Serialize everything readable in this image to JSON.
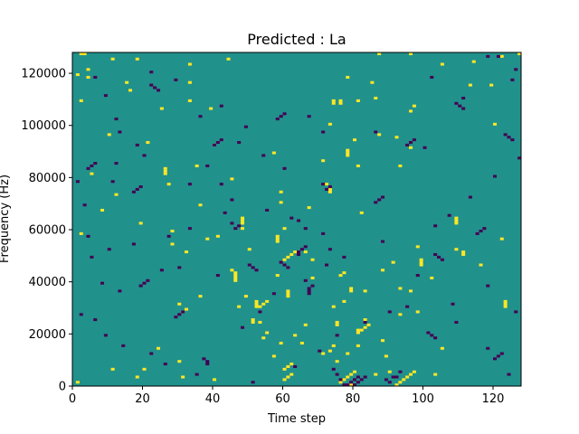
{
  "chart_data": {
    "type": "heatmap",
    "title": "Predicted : La",
    "xlabel": "Time step",
    "ylabel": "Frequency (Hz)",
    "xlim": [
      0,
      128
    ],
    "ylim": [
      0,
      128000
    ],
    "n_cols": 128,
    "n_rows": 128,
    "x_ticks": [
      0,
      20,
      40,
      60,
      80,
      100,
      120
    ],
    "x_tick_labels": [
      "0",
      "20",
      "40",
      "60",
      "80",
      "100",
      "120"
    ],
    "y_ticks": [
      0,
      20000,
      40000,
      60000,
      80000,
      100000,
      120000
    ],
    "y_tick_labels": [
      "0",
      "20000",
      "40000",
      "60000",
      "80000",
      "100000",
      "120000"
    ],
    "colors": {
      "background": "#21918c",
      "high": "#fde725",
      "low": "#440154"
    },
    "value_levels": {
      "background": 0.5,
      "high": 1.0,
      "low": 0.0
    },
    "high_cells": [
      [
        2,
        127
      ],
      [
        3,
        127
      ],
      [
        96,
        127
      ],
      [
        127,
        127
      ],
      [
        122,
        126
      ],
      [
        11,
        125
      ],
      [
        18,
        125
      ],
      [
        44,
        125
      ],
      [
        105,
        123
      ],
      [
        4,
        121
      ],
      [
        1,
        119
      ],
      [
        78,
        118
      ],
      [
        33,
        116
      ],
      [
        113,
        115
      ],
      [
        16,
        113
      ],
      [
        2,
        109
      ],
      [
        33,
        109
      ],
      [
        39,
        106
      ],
      [
        96,
        105
      ],
      [
        10,
        96
      ],
      [
        21,
        93
      ],
      [
        40,
        92
      ],
      [
        57,
        89
      ],
      [
        71,
        86
      ],
      [
        81,
        84
      ],
      [
        93,
        84
      ],
      [
        5,
        81
      ],
      [
        45,
        79
      ],
      [
        27,
        77
      ],
      [
        59,
        74
      ],
      [
        12,
        73
      ],
      [
        59,
        70
      ],
      [
        67,
        68
      ],
      [
        82,
        66
      ],
      [
        19,
        62
      ],
      [
        41,
        57
      ],
      [
        50,
        52
      ],
      [
        68,
        48
      ],
      [
        91,
        47
      ],
      [
        88,
        44
      ],
      [
        68,
        41
      ],
      [
        46,
        40
      ],
      [
        93,
        37
      ],
      [
        83,
        36
      ],
      [
        77,
        32
      ],
      [
        30,
        31
      ],
      [
        47,
        30
      ],
      [
        93,
        27
      ],
      [
        83,
        25
      ],
      [
        66,
        23
      ],
      [
        54,
        18
      ],
      [
        88,
        17
      ],
      [
        59,
        16
      ],
      [
        24,
        14
      ],
      [
        71,
        12
      ],
      [
        78,
        12
      ],
      [
        30,
        9
      ],
      [
        11,
        6
      ],
      [
        86,
        4
      ],
      [
        103,
        4
      ],
      [
        18,
        3
      ],
      [
        40,
        2
      ],
      [
        81,
        15
      ],
      [
        38,
        56
      ],
      [
        25,
        106
      ],
      [
        89,
        11
      ],
      [
        109,
        52
      ],
      [
        102,
        41
      ],
      [
        63,
        19
      ],
      [
        119,
        115
      ],
      [
        2,
        58
      ],
      [
        32,
        51
      ],
      [
        36,
        34
      ],
      [
        73,
        100
      ],
      [
        73,
        75
      ],
      [
        66,
        51
      ],
      [
        74,
        30
      ],
      [
        85,
        116
      ],
      [
        58,
        42
      ],
      [
        53,
        24
      ],
      [
        87,
        96
      ],
      [
        86,
        110
      ],
      [
        96,
        91
      ],
      [
        48,
        60
      ],
      [
        31,
        3
      ],
      [
        48,
        63
      ],
      [
        90,
        5
      ],
      [
        55,
        20
      ],
      [
        35,
        84
      ],
      [
        8,
        67
      ],
      [
        74,
        15
      ],
      [
        73,
        13
      ],
      [
        80,
        94
      ],
      [
        36,
        69
      ],
      [
        60,
        60
      ],
      [
        116,
        46
      ],
      [
        96,
        36
      ],
      [
        4,
        118
      ],
      [
        28,
        59
      ],
      [
        75,
        9
      ],
      [
        75,
        23
      ],
      [
        49,
        34
      ],
      [
        20,
        6
      ],
      [
        73,
        74
      ],
      [
        57,
        11
      ],
      [
        94,
        2
      ],
      [
        98,
        53
      ],
      [
        72,
        77
      ],
      [
        15,
        116
      ],
      [
        114,
        124
      ],
      [
        33,
        123
      ],
      [
        98,
        28
      ],
      [
        92,
        95
      ],
      [
        87,
        127
      ],
      [
        75,
        24
      ],
      [
        28,
        54
      ],
      [
        81,
        109
      ],
      [
        65,
        16
      ],
      [
        120,
        100
      ],
      [
        97,
        107
      ],
      [
        122,
        56
      ],
      [
        81,
        21
      ],
      [
        1,
        1
      ],
      [
        79,
        0
      ],
      [
        76,
        1
      ],
      [
        77,
        2
      ],
      [
        78,
        3
      ],
      [
        79,
        4
      ],
      [
        80,
        5
      ],
      [
        92,
        0
      ],
      [
        93,
        1
      ],
      [
        94,
        2
      ],
      [
        95,
        3
      ],
      [
        96,
        4
      ],
      [
        97,
        5
      ],
      [
        46,
        40
      ],
      [
        46,
        41
      ],
      [
        46,
        42
      ],
      [
        46,
        43
      ],
      [
        45,
        44
      ],
      [
        52,
        30
      ],
      [
        52,
        31
      ],
      [
        52,
        32
      ],
      [
        51,
        24
      ],
      [
        51,
        25
      ],
      [
        48,
        62
      ],
      [
        48,
        63
      ],
      [
        48,
        64
      ],
      [
        60,
        6
      ],
      [
        61,
        7
      ],
      [
        62,
        8
      ],
      [
        60,
        2
      ],
      [
        61,
        3
      ],
      [
        62,
        4
      ],
      [
        53,
        30
      ],
      [
        54,
        31
      ],
      [
        55,
        32
      ],
      [
        58,
        55
      ],
      [
        58,
        56
      ],
      [
        58,
        57
      ],
      [
        78,
        88
      ],
      [
        78,
        89
      ],
      [
        78,
        90
      ],
      [
        31,
        28
      ],
      [
        32,
        29
      ],
      [
        26,
        81
      ],
      [
        26,
        82
      ],
      [
        26,
        83
      ],
      [
        74,
        108
      ],
      [
        74,
        109
      ],
      [
        76,
        108
      ],
      [
        76,
        109
      ],
      [
        109,
        62
      ],
      [
        109,
        63
      ],
      [
        109,
        64
      ],
      [
        111,
        50
      ],
      [
        111,
        51
      ],
      [
        123,
        30
      ],
      [
        123,
        31
      ],
      [
        123,
        32
      ],
      [
        99,
        46
      ],
      [
        99,
        47
      ],
      [
        99,
        48
      ],
      [
        60,
        48
      ],
      [
        61,
        49
      ],
      [
        62,
        50
      ],
      [
        63,
        51
      ],
      [
        61,
        34
      ],
      [
        61,
        35
      ],
      [
        61,
        36
      ],
      [
        76,
        42
      ],
      [
        77,
        43
      ],
      [
        79,
        36
      ],
      [
        79,
        37
      ],
      [
        81,
        20
      ],
      [
        82,
        21
      ],
      [
        83,
        22
      ],
      [
        84,
        23
      ],
      [
        105,
        14
      ]
    ],
    "low_cells": [
      [
        118,
        126
      ],
      [
        121,
        126
      ],
      [
        126,
        121
      ],
      [
        125,
        117
      ],
      [
        22,
        120
      ],
      [
        29,
        117
      ],
      [
        42,
        107
      ],
      [
        36,
        103
      ],
      [
        49,
        99
      ],
      [
        67,
        103
      ],
      [
        102,
        118
      ],
      [
        111,
        110
      ],
      [
        20,
        88
      ],
      [
        18,
        92
      ],
      [
        12,
        85
      ],
      [
        11,
        78
      ],
      [
        33,
        77
      ],
      [
        43,
        66
      ],
      [
        64,
        63
      ],
      [
        71,
        58
      ],
      [
        77,
        49
      ],
      [
        88,
        55
      ],
      [
        98,
        42
      ],
      [
        118,
        38
      ],
      [
        108,
        31
      ],
      [
        126,
        28
      ],
      [
        2,
        27
      ],
      [
        6,
        25
      ],
      [
        9,
        19
      ],
      [
        14,
        15
      ],
      [
        22,
        12
      ],
      [
        26,
        8
      ],
      [
        35,
        4
      ],
      [
        51,
        1
      ],
      [
        63,
        7
      ],
      [
        70,
        13
      ],
      [
        75,
        19
      ],
      [
        83,
        24
      ],
      [
        90,
        28
      ],
      [
        95,
        30
      ],
      [
        109,
        24
      ],
      [
        118,
        14
      ],
      [
        124,
        4
      ],
      [
        48,
        22
      ],
      [
        53,
        28
      ],
      [
        57,
        35
      ],
      [
        66,
        40
      ],
      [
        72,
        46
      ],
      [
        73,
        52
      ],
      [
        103,
        61
      ],
      [
        107,
        65
      ],
      [
        113,
        72
      ],
      [
        120,
        80
      ],
      [
        127,
        87
      ],
      [
        100,
        91
      ],
      [
        86,
        97
      ],
      [
        71,
        97
      ],
      [
        60,
        83
      ],
      [
        54,
        88
      ],
      [
        47,
        93
      ],
      [
        38,
        84
      ],
      [
        42,
        77
      ],
      [
        45,
        71
      ],
      [
        55,
        67
      ],
      [
        62,
        64
      ],
      [
        66,
        60
      ],
      [
        33,
        60
      ],
      [
        27,
        57
      ],
      [
        17,
        54
      ],
      [
        10,
        52
      ],
      [
        5,
        49
      ],
      [
        8,
        39
      ],
      [
        13,
        36
      ],
      [
        25,
        44
      ],
      [
        30,
        45
      ],
      [
        41,
        42
      ],
      [
        4,
        57
      ],
      [
        3,
        69
      ],
      [
        1,
        78
      ],
      [
        13,
        97
      ],
      [
        12,
        102
      ],
      [
        9,
        111
      ],
      [
        6,
        118
      ],
      [
        78,
        0
      ],
      [
        79,
        1
      ],
      [
        80,
        2
      ],
      [
        81,
        3
      ],
      [
        80,
        0
      ],
      [
        81,
        1
      ],
      [
        82,
        2
      ],
      [
        83,
        3
      ],
      [
        77,
        0
      ],
      [
        76,
        2
      ],
      [
        75,
        4
      ],
      [
        74,
        6
      ],
      [
        91,
        3
      ],
      [
        90,
        1
      ],
      [
        89,
        2
      ],
      [
        38,
        8
      ],
      [
        38,
        9
      ],
      [
        37,
        10
      ],
      [
        92,
        3
      ],
      [
        93,
        5
      ],
      [
        50,
        46
      ],
      [
        51,
        45
      ],
      [
        52,
        44
      ],
      [
        46,
        60
      ],
      [
        47,
        61
      ],
      [
        45,
        62
      ],
      [
        67,
        35
      ],
      [
        67,
        36
      ],
      [
        67,
        37
      ],
      [
        68,
        38
      ],
      [
        64,
        50
      ],
      [
        64,
        51
      ],
      [
        65,
        52
      ],
      [
        66,
        53
      ],
      [
        59,
        47
      ],
      [
        60,
        46
      ],
      [
        61,
        45
      ],
      [
        72,
        75
      ],
      [
        73,
        76
      ],
      [
        71,
        77
      ],
      [
        58,
        102
      ],
      [
        59,
        103
      ],
      [
        60,
        104
      ],
      [
        40,
        92
      ],
      [
        41,
        93
      ],
      [
        42,
        94
      ],
      [
        109,
        108
      ],
      [
        110,
        107
      ],
      [
        111,
        106
      ],
      [
        4,
        83
      ],
      [
        5,
        84
      ],
      [
        6,
        85
      ],
      [
        103,
        50
      ],
      [
        104,
        49
      ],
      [
        105,
        48
      ],
      [
        120,
        10
      ],
      [
        121,
        11
      ],
      [
        122,
        12
      ],
      [
        29,
        26
      ],
      [
        30,
        27
      ],
      [
        31,
        28
      ],
      [
        19,
        38
      ],
      [
        20,
        39
      ],
      [
        21,
        40
      ],
      [
        115,
        58
      ],
      [
        116,
        59
      ],
      [
        117,
        60
      ],
      [
        86,
        70
      ],
      [
        87,
        71
      ],
      [
        88,
        72
      ],
      [
        17,
        74
      ],
      [
        18,
        75
      ],
      [
        19,
        76
      ],
      [
        95,
        92
      ],
      [
        96,
        93
      ],
      [
        97,
        94
      ],
      [
        22,
        115
      ],
      [
        23,
        114
      ],
      [
        24,
        113
      ],
      [
        123,
        96
      ],
      [
        124,
        95
      ],
      [
        125,
        94
      ],
      [
        101,
        20
      ],
      [
        102,
        19
      ],
      [
        103,
        18
      ]
    ]
  }
}
